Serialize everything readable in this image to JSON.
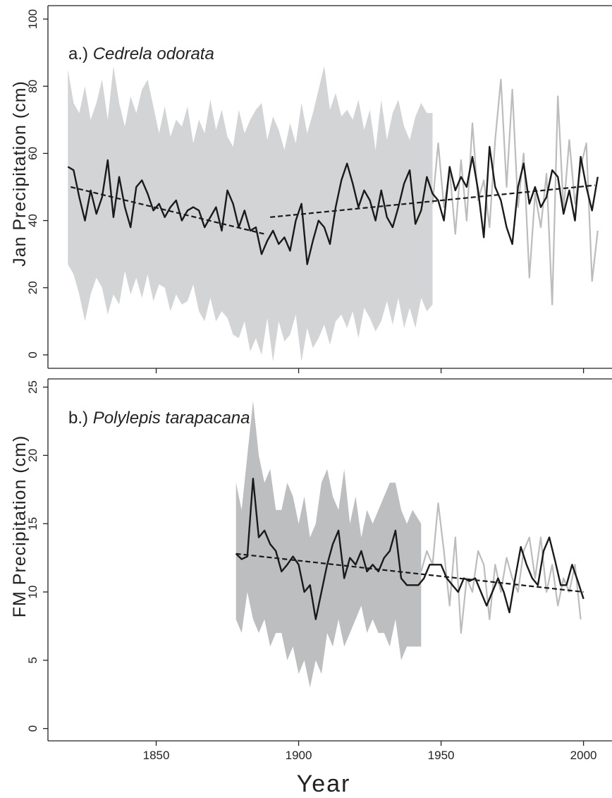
{
  "figure": {
    "xlabel": "Year"
  },
  "colors": {
    "band_a": "#d3d4d5",
    "band_b": "#bdbec0",
    "observed": "#bcbcbc",
    "reconstruction": "#1a1a1a",
    "trend": "#1a1a1a"
  },
  "chart_data": [
    {
      "type": "line",
      "panel_label": "a.)",
      "title": "Cedrela odorata",
      "ylabel": "Jan Precipitation (cm)",
      "xlim": [
        1812,
        2010
      ],
      "ylim": [
        -4,
        104
      ],
      "yticks": [
        0,
        20,
        40,
        60,
        80,
        100
      ],
      "xticks": [
        1850,
        1900,
        1950,
        2000
      ],
      "band": {
        "x": [
          1819,
          1821,
          1823,
          1825,
          1827,
          1829,
          1831,
          1833,
          1835,
          1837,
          1839,
          1841,
          1843,
          1845,
          1847,
          1849,
          1851,
          1853,
          1855,
          1857,
          1859,
          1861,
          1863,
          1865,
          1867,
          1869,
          1871,
          1873,
          1875,
          1877,
          1879,
          1881,
          1883,
          1885,
          1887,
          1889,
          1891,
          1893,
          1895,
          1897,
          1899,
          1901,
          1903,
          1905,
          1907,
          1909,
          1911,
          1913,
          1915,
          1917,
          1919,
          1921,
          1923,
          1925,
          1927,
          1929,
          1931,
          1933,
          1935,
          1937,
          1939,
          1941,
          1943,
          1945,
          1947
        ],
        "upper": [
          85,
          75,
          72,
          80,
          70,
          75,
          82,
          70,
          86,
          75,
          68,
          77,
          72,
          79,
          82,
          74,
          66,
          74,
          65,
          70,
          68,
          74,
          63,
          70,
          66,
          76,
          67,
          73,
          65,
          62,
          73,
          66,
          70,
          73,
          75,
          64,
          71,
          67,
          61,
          69,
          63,
          75,
          66,
          72,
          79,
          86,
          73,
          78,
          71,
          73,
          70,
          76,
          67,
          73,
          61,
          76,
          64,
          72,
          76,
          68,
          64,
          71,
          75,
          72,
          72
        ],
        "lower": [
          27,
          24,
          18,
          10,
          18,
          23,
          20,
          12,
          18,
          15,
          25,
          18,
          23,
          17,
          24,
          16,
          21,
          20,
          13,
          18,
          15,
          16,
          21,
          13,
          10,
          17,
          10,
          13,
          11,
          6,
          5,
          10,
          1,
          5,
          0,
          11,
          -2,
          10,
          4,
          6,
          12,
          -2,
          8,
          2,
          5,
          9,
          3,
          10,
          12,
          8,
          13,
          5,
          14,
          11,
          7,
          10,
          16,
          9,
          17,
          8,
          14,
          8,
          17,
          13,
          15
        ]
      },
      "series": [
        {
          "role": "observed",
          "x": [
            1947,
            1949,
            1951,
            1953,
            1955,
            1957,
            1959,
            1961,
            1963,
            1965,
            1967,
            1969,
            1971,
            1973,
            1975,
            1977,
            1979,
            1981,
            1983,
            1985,
            1987,
            1989,
            1991,
            1993,
            1995,
            1997,
            1999,
            2001,
            2003,
            2005
          ],
          "y": [
            45,
            63,
            44,
            55,
            36,
            58,
            40,
            69,
            46,
            52,
            38,
            64,
            82,
            50,
            79,
            44,
            60,
            23,
            48,
            38,
            54,
            15,
            77,
            43,
            64,
            45,
            56,
            63,
            22,
            37
          ]
        },
        {
          "role": "reconstruction",
          "x": [
            1819,
            1821,
            1823,
            1825,
            1827,
            1829,
            1831,
            1833,
            1835,
            1837,
            1839,
            1841,
            1843,
            1845,
            1847,
            1849,
            1851,
            1853,
            1855,
            1857,
            1859,
            1861,
            1863,
            1865,
            1867,
            1869,
            1871,
            1873,
            1875,
            1877,
            1879,
            1881,
            1883,
            1885,
            1887,
            1889,
            1891,
            1893,
            1895,
            1897,
            1899,
            1901,
            1903,
            1905,
            1907,
            1909,
            1911,
            1913,
            1915,
            1917,
            1919,
            1921,
            1923,
            1925,
            1927,
            1929,
            1931,
            1933,
            1935,
            1937,
            1939,
            1941,
            1943,
            1945,
            1947,
            1949,
            1951,
            1953,
            1955,
            1957,
            1959,
            1961,
            1963,
            1965,
            1967,
            1969,
            1971,
            1973,
            1975,
            1977,
            1979,
            1981,
            1983,
            1985,
            1987,
            1989,
            1991,
            1993,
            1995,
            1997,
            1999,
            2001,
            2003,
            2005
          ],
          "y": [
            56,
            55,
            47,
            40,
            49,
            42,
            47,
            58,
            41,
            53,
            44,
            38,
            50,
            52,
            48,
            43,
            45,
            41,
            44,
            46,
            40,
            43,
            44,
            43,
            38,
            41,
            44,
            37,
            49,
            45,
            38,
            43,
            37,
            38,
            30,
            34,
            37,
            33,
            35,
            31,
            40,
            45,
            27,
            34,
            40,
            38,
            33,
            44,
            52,
            57,
            51,
            44,
            49,
            46,
            40,
            49,
            41,
            38,
            44,
            51,
            55,
            39,
            43,
            53,
            48,
            46,
            40,
            56,
            49,
            53,
            50,
            59,
            49,
            35,
            62,
            50,
            46,
            38,
            33,
            50,
            57,
            45,
            50,
            44,
            47,
            55,
            53,
            42,
            49,
            40,
            59,
            50,
            43,
            53
          ]
        },
        {
          "role": "trend",
          "segments": [
            {
              "x": [
                1820,
                1888
              ],
              "y": [
                50,
                36
              ]
            },
            {
              "x": [
                1890,
                2004
              ],
              "y": [
                41,
                50.5
              ]
            }
          ]
        }
      ]
    },
    {
      "type": "line",
      "panel_label": "b.)",
      "title": "Polylepis tarapacana",
      "ylabel": "FM Precipitation (cm)",
      "xlim": [
        1812,
        2010
      ],
      "ylim": [
        -0.9,
        25.6
      ],
      "yticks": [
        0,
        5,
        10,
        15,
        20,
        25
      ],
      "xticks": [
        1850,
        1900,
        1950,
        2000
      ],
      "band": {
        "x": [
          1878,
          1880,
          1882,
          1884,
          1886,
          1888,
          1890,
          1892,
          1894,
          1896,
          1898,
          1900,
          1902,
          1904,
          1906,
          1908,
          1910,
          1912,
          1914,
          1916,
          1918,
          1920,
          1922,
          1924,
          1926,
          1928,
          1930,
          1932,
          1934,
          1936,
          1938,
          1940,
          1943
        ],
        "upper": [
          18,
          16,
          20,
          24,
          20,
          18,
          19,
          16,
          16,
          18,
          17,
          15,
          17,
          14,
          15,
          18,
          19,
          17,
          16,
          19,
          15,
          17,
          14,
          16,
          15,
          16,
          17,
          18,
          18,
          16,
          15,
          16,
          15
        ],
        "lower": [
          8,
          7,
          10,
          8,
          7,
          8,
          6,
          7,
          7,
          5,
          6,
          4,
          5,
          3,
          5,
          4,
          7,
          6,
          8,
          6,
          7,
          8,
          9,
          7,
          8,
          7,
          7,
          6,
          8,
          5,
          6,
          6,
          6
        ]
      },
      "series": [
        {
          "role": "observed",
          "x": [
            1943,
            1945,
            1947,
            1949,
            1951,
            1953,
            1955,
            1957,
            1959,
            1961,
            1963,
            1965,
            1967,
            1969,
            1971,
            1973,
            1975,
            1977,
            1979,
            1981,
            1983,
            1985,
            1987,
            1989,
            1991,
            1993,
            1995,
            1997,
            1999
          ],
          "y": [
            11.5,
            13,
            12,
            16.5,
            13,
            9,
            14,
            7,
            11,
            10,
            13,
            12,
            8,
            12,
            10,
            12.5,
            11,
            10,
            13,
            14,
            11,
            14,
            10,
            12,
            9,
            11,
            10,
            12,
            8
          ]
        },
        {
          "role": "reconstruction",
          "x": [
            1878,
            1880,
            1882,
            1884,
            1886,
            1888,
            1890,
            1892,
            1894,
            1896,
            1898,
            1900,
            1902,
            1904,
            1906,
            1908,
            1910,
            1912,
            1914,
            1916,
            1918,
            1920,
            1922,
            1924,
            1926,
            1928,
            1930,
            1932,
            1934,
            1936,
            1938,
            1940,
            1942,
            1944,
            1946,
            1948,
            1950,
            1952,
            1954,
            1956,
            1958,
            1960,
            1962,
            1964,
            1966,
            1968,
            1970,
            1972,
            1974,
            1976,
            1978,
            1980,
            1982,
            1984,
            1986,
            1988,
            1990,
            1992,
            1994,
            1996,
            1998,
            2000
          ],
          "y": [
            12.8,
            12.4,
            12.6,
            18.3,
            14,
            14.5,
            13.5,
            13,
            11.5,
            12,
            12.6,
            12,
            10,
            10.5,
            8,
            10,
            12,
            13.5,
            14.5,
            11,
            12.5,
            12,
            13,
            11.5,
            12,
            11.5,
            12.5,
            13,
            14.5,
            11,
            10.5,
            10.5,
            10.5,
            11,
            12,
            12,
            12,
            11,
            10.5,
            10,
            11,
            10.8,
            11,
            10,
            9,
            10,
            11,
            10,
            8.5,
            11,
            13.3,
            12,
            11,
            10.5,
            13,
            14,
            12.3,
            10.5,
            10.5,
            12,
            10.8,
            9.5
          ]
        },
        {
          "role": "trend",
          "segments": [
            {
              "x": [
                1878,
                2000
              ],
              "y": [
                12.8,
                10.0
              ]
            }
          ]
        }
      ]
    }
  ]
}
